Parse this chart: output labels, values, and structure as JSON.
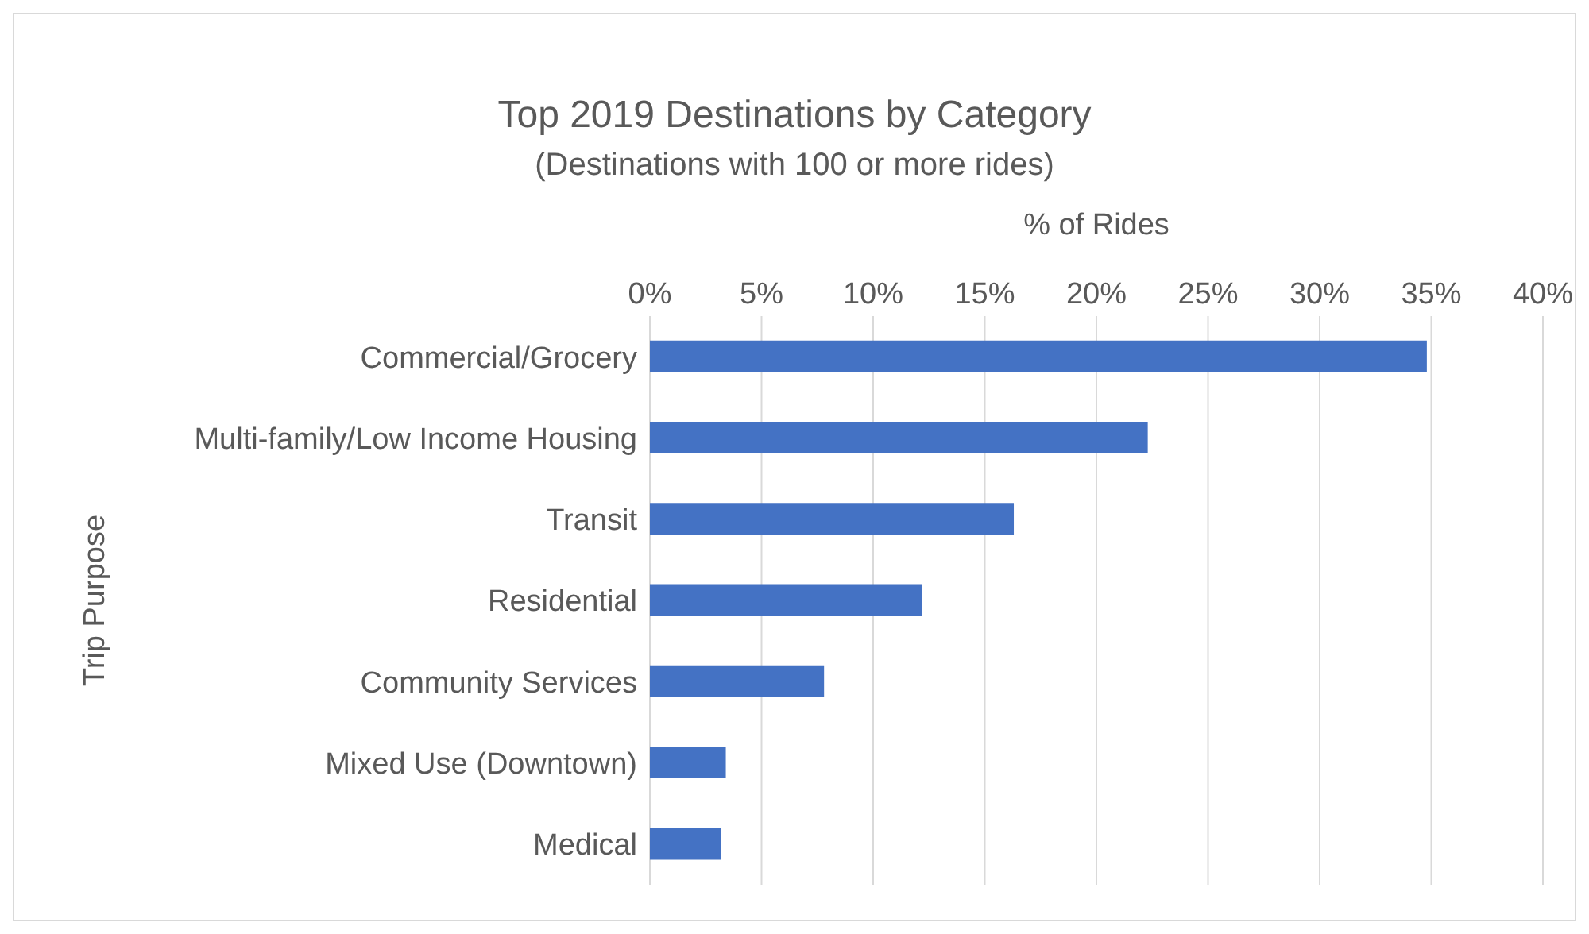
{
  "chart_data": {
    "type": "bar",
    "orientation": "horizontal",
    "title": "Top 2019 Destinations by Category",
    "subtitle": "(Destinations with 100 or more rides)",
    "xlabel": "% of Rides",
    "ylabel": "Trip Purpose",
    "categories": [
      "Commercial/Grocery",
      "Multi-family/Low Income Housing",
      "Transit",
      "Residential",
      "Community Services",
      "Mixed Use (Downtown)",
      "Medical"
    ],
    "values": [
      34.8,
      22.3,
      16.3,
      12.2,
      7.8,
      3.4,
      3.2
    ],
    "color": "#4472c4",
    "xlim": [
      0,
      40
    ],
    "xticks": [
      {
        "value": 0,
        "label": "0%"
      },
      {
        "value": 5,
        "label": "5%"
      },
      {
        "value": 10,
        "label": "10%"
      },
      {
        "value": 15,
        "label": "15%"
      },
      {
        "value": 20,
        "label": "20%"
      },
      {
        "value": 25,
        "label": "25%"
      },
      {
        "value": 30,
        "label": "30%"
      },
      {
        "value": 35,
        "label": "35%"
      },
      {
        "value": 40,
        "label": "40%"
      }
    ],
    "grid": "x"
  }
}
